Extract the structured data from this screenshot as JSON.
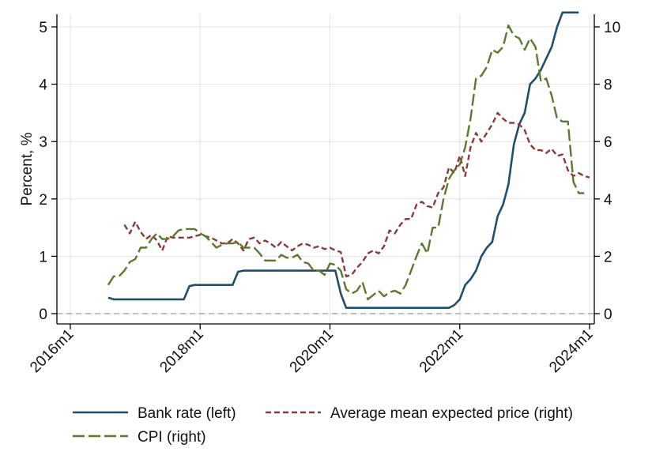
{
  "chart_data": {
    "type": "line",
    "title": "",
    "ylabel": "Percent, %",
    "y_left": {
      "ylim": [
        0,
        5
      ],
      "ticks": [
        "0",
        "1",
        "2",
        "3",
        "4",
        "5"
      ]
    },
    "y_right": {
      "ylim": [
        0,
        10
      ],
      "ticks": [
        "0",
        "2",
        "4",
        "6",
        "8",
        "10"
      ]
    },
    "x_axis": {
      "range": [
        2016,
        2024
      ],
      "ticks": [
        {
          "label": "2016m1",
          "value": 2016
        },
        {
          "label": "2018m1",
          "value": 2018
        },
        {
          "label": "2020m1",
          "value": 2020
        },
        {
          "label": "2022m1",
          "value": 2022
        },
        {
          "label": "2024m1",
          "value": 2024
        }
      ]
    },
    "grid": true,
    "zero_reference_line": 0,
    "legend_position": "bottom",
    "colors": {
      "bank_rate": "#1f4e6e",
      "expected_price": "#8b3a3a",
      "cpi": "#5a7a2e",
      "grid": "#e3e3e3",
      "reference": "#999999"
    },
    "series": [
      {
        "name": "Bank rate (left)",
        "axis": "left",
        "style": "solid",
        "points": [
          [
            "2016m8",
            0.28
          ],
          [
            "2016m9",
            0.25
          ],
          [
            "2016m12",
            0.25
          ],
          [
            "2017m3",
            0.25
          ],
          [
            "2017m6",
            0.25
          ],
          [
            "2017m10",
            0.25
          ],
          [
            "2017m11",
            0.48
          ],
          [
            "2017m12",
            0.5
          ],
          [
            "2018m3",
            0.5
          ],
          [
            "2018m7",
            0.5
          ],
          [
            "2018m8",
            0.73
          ],
          [
            "2018m9",
            0.75
          ],
          [
            "2019m6",
            0.75
          ],
          [
            "2020m1",
            0.75
          ],
          [
            "2020m2",
            0.75
          ],
          [
            "2020m3",
            0.35
          ],
          [
            "2020m4",
            0.1
          ],
          [
            "2020m8",
            0.1
          ],
          [
            "2021m6",
            0.1
          ],
          [
            "2021m11",
            0.1
          ],
          [
            "2021m12",
            0.15
          ],
          [
            "2022m1",
            0.25
          ],
          [
            "2022m2",
            0.5
          ],
          [
            "2022m3",
            0.6
          ],
          [
            "2022m4",
            0.75
          ],
          [
            "2022m5",
            1.0
          ],
          [
            "2022m6",
            1.15
          ],
          [
            "2022m7",
            1.25
          ],
          [
            "2022m8",
            1.7
          ],
          [
            "2022m9",
            1.9
          ],
          [
            "2022m10",
            2.25
          ],
          [
            "2022m11",
            2.95
          ],
          [
            "2022m12",
            3.3
          ],
          [
            "2023m1",
            3.5
          ],
          [
            "2023m2",
            4.0
          ],
          [
            "2023m3",
            4.1
          ],
          [
            "2023m4",
            4.25
          ],
          [
            "2023m5",
            4.45
          ],
          [
            "2023m6",
            4.65
          ],
          [
            "2023m7",
            5.0
          ],
          [
            "2023m8",
            5.25
          ],
          [
            "2023m9",
            5.25
          ],
          [
            "2023m10",
            5.25
          ],
          [
            "2023m11",
            5.25
          ]
        ]
      },
      {
        "name": "Average mean expected price (right)",
        "axis": "right",
        "style": "short-dash",
        "points": [
          [
            "2016m11",
            3.1
          ],
          [
            "2016m12",
            2.8
          ],
          [
            "2017m1",
            3.2
          ],
          [
            "2017m2",
            2.85
          ],
          [
            "2017m3",
            2.6
          ],
          [
            "2017m4",
            2.75
          ],
          [
            "2017m5",
            2.55
          ],
          [
            "2017m6",
            2.2
          ],
          [
            "2017m7",
            2.7
          ],
          [
            "2017m8",
            2.65
          ],
          [
            "2017m9",
            2.65
          ],
          [
            "2017m10",
            2.65
          ],
          [
            "2017m11",
            2.65
          ],
          [
            "2017m12",
            2.7
          ],
          [
            "2018m1",
            2.75
          ],
          [
            "2018m2",
            2.7
          ],
          [
            "2018m3",
            2.65
          ],
          [
            "2018m4",
            2.55
          ],
          [
            "2018m5",
            2.45
          ],
          [
            "2018m6",
            2.45
          ],
          [
            "2018m7",
            2.6
          ],
          [
            "2018m8",
            2.45
          ],
          [
            "2018m9",
            2.2
          ],
          [
            "2018m10",
            2.6
          ],
          [
            "2018m11",
            2.65
          ],
          [
            "2018m12",
            2.45
          ],
          [
            "2019m1",
            2.55
          ],
          [
            "2019m2",
            2.45
          ],
          [
            "2019m3",
            2.3
          ],
          [
            "2019m4",
            2.5
          ],
          [
            "2019m5",
            2.35
          ],
          [
            "2019m6",
            2.2
          ],
          [
            "2019m7",
            2.35
          ],
          [
            "2019m8",
            2.45
          ],
          [
            "2019m9",
            2.4
          ],
          [
            "2019m10",
            2.3
          ],
          [
            "2019m11",
            2.35
          ],
          [
            "2019m12",
            2.25
          ],
          [
            "2020m1",
            2.3
          ],
          [
            "2020m2",
            2.2
          ],
          [
            "2020m3",
            2.15
          ],
          [
            "2020m4",
            1.3
          ],
          [
            "2020m5",
            1.35
          ],
          [
            "2020m6",
            1.6
          ],
          [
            "2020m7",
            1.8
          ],
          [
            "2020m8",
            2.1
          ],
          [
            "2020m9",
            2.2
          ],
          [
            "2020m10",
            2.1
          ],
          [
            "2020m11",
            2.35
          ],
          [
            "2020m12",
            2.9
          ],
          [
            "2021m1",
            2.8
          ],
          [
            "2021m2",
            3.1
          ],
          [
            "2021m3",
            3.3
          ],
          [
            "2021m4",
            3.3
          ],
          [
            "2021m5",
            3.8
          ],
          [
            "2021m6",
            3.9
          ],
          [
            "2021m7",
            3.75
          ],
          [
            "2021m8",
            3.7
          ],
          [
            "2021m9",
            4.2
          ],
          [
            "2021m10",
            4.4
          ],
          [
            "2021m11",
            5.1
          ],
          [
            "2021m12",
            4.9
          ],
          [
            "2022m1",
            5.5
          ],
          [
            "2022m2",
            4.8
          ],
          [
            "2022m3",
            5.8
          ],
          [
            "2022m4",
            6.3
          ],
          [
            "2022m5",
            6.0
          ],
          [
            "2022m6",
            6.3
          ],
          [
            "2022m7",
            6.6
          ],
          [
            "2022m8",
            7.0
          ],
          [
            "2022m9",
            6.8
          ],
          [
            "2022m10",
            6.65
          ],
          [
            "2022m11",
            6.65
          ],
          [
            "2022m12",
            6.6
          ],
          [
            "2023m1",
            6.4
          ],
          [
            "2023m2",
            5.9
          ],
          [
            "2023m3",
            5.7
          ],
          [
            "2023m4",
            5.7
          ],
          [
            "2023m5",
            5.6
          ],
          [
            "2023m6",
            5.75
          ],
          [
            "2023m7",
            5.5
          ],
          [
            "2023m8",
            5.55
          ],
          [
            "2023m9",
            5.0
          ],
          [
            "2023m10",
            4.8
          ],
          [
            "2023m11",
            4.9
          ],
          [
            "2023m12",
            4.8
          ],
          [
            "2024m1",
            4.75
          ]
        ]
      },
      {
        "name": "CPI (right)",
        "axis": "right",
        "style": "long-dash",
        "points": [
          [
            "2016m8",
            1.0
          ],
          [
            "2016m9",
            1.3
          ],
          [
            "2016m10",
            1.3
          ],
          [
            "2016m11",
            1.5
          ],
          [
            "2016m12",
            1.8
          ],
          [
            "2017m1",
            1.9
          ],
          [
            "2017m2",
            2.3
          ],
          [
            "2017m3",
            2.3
          ],
          [
            "2017m4",
            2.6
          ],
          [
            "2017m5",
            2.8
          ],
          [
            "2017m6",
            2.6
          ],
          [
            "2017m7",
            2.6
          ],
          [
            "2017m8",
            2.7
          ],
          [
            "2017m9",
            2.9
          ],
          [
            "2017m10",
            2.95
          ],
          [
            "2017m11",
            2.95
          ],
          [
            "2017m12",
            2.95
          ],
          [
            "2018m1",
            2.8
          ],
          [
            "2018m2",
            2.7
          ],
          [
            "2018m3",
            2.5
          ],
          [
            "2018m4",
            2.3
          ],
          [
            "2018m5",
            2.4
          ],
          [
            "2018m6",
            2.45
          ],
          [
            "2018m7",
            2.45
          ],
          [
            "2018m8",
            2.5
          ],
          [
            "2018m9",
            2.3
          ],
          [
            "2018m10",
            2.3
          ],
          [
            "2018m11",
            2.3
          ],
          [
            "2018m12",
            2.1
          ],
          [
            "2019m1",
            1.85
          ],
          [
            "2019m2",
            1.85
          ],
          [
            "2019m3",
            1.85
          ],
          [
            "2019m4",
            2.05
          ],
          [
            "2019m5",
            1.95
          ],
          [
            "2019m6",
            1.95
          ],
          [
            "2019m7",
            2.05
          ],
          [
            "2019m8",
            1.8
          ],
          [
            "2019m9",
            1.75
          ],
          [
            "2019m10",
            1.5
          ],
          [
            "2019m11",
            1.5
          ],
          [
            "2019m12",
            1.35
          ],
          [
            "2020m1",
            1.75
          ],
          [
            "2020m2",
            1.7
          ],
          [
            "2020m3",
            1.5
          ],
          [
            "2020m4",
            0.85
          ],
          [
            "2020m5",
            0.7
          ],
          [
            "2020m6",
            0.8
          ],
          [
            "2020m7",
            1.1
          ],
          [
            "2020m8",
            0.5
          ],
          [
            "2020m9",
            0.65
          ],
          [
            "2020m10",
            0.8
          ],
          [
            "2020m11",
            0.6
          ],
          [
            "2020m12",
            0.75
          ],
          [
            "2021m1",
            0.8
          ],
          [
            "2021m2",
            0.7
          ],
          [
            "2021m3",
            1.0
          ],
          [
            "2021m4",
            1.5
          ],
          [
            "2021m5",
            2.0
          ],
          [
            "2021m6",
            2.45
          ],
          [
            "2021m7",
            2.1
          ],
          [
            "2021m8",
            3.0
          ],
          [
            "2021m9",
            3.0
          ],
          [
            "2021m10",
            4.0
          ],
          [
            "2021m11",
            4.7
          ],
          [
            "2021m12",
            5.0
          ],
          [
            "2022m1",
            5.2
          ],
          [
            "2022m2",
            5.8
          ],
          [
            "2022m3",
            6.8
          ],
          [
            "2022m4",
            8.2
          ],
          [
            "2022m5",
            8.3
          ],
          [
            "2022m6",
            8.6
          ],
          [
            "2022m7",
            9.2
          ],
          [
            "2022m8",
            9.1
          ],
          [
            "2022m9",
            9.3
          ],
          [
            "2022m10",
            10.05
          ],
          [
            "2022m11",
            9.7
          ],
          [
            "2022m12",
            9.6
          ],
          [
            "2023m1",
            9.2
          ],
          [
            "2023m2",
            9.6
          ],
          [
            "2023m3",
            9.3
          ],
          [
            "2023m4",
            8.1
          ],
          [
            "2023m5",
            8.2
          ],
          [
            "2023m6",
            7.6
          ],
          [
            "2023m7",
            6.8
          ],
          [
            "2023m8",
            6.7
          ],
          [
            "2023m9",
            6.7
          ],
          [
            "2023m10",
            4.6
          ],
          [
            "2023m11",
            4.2
          ],
          [
            "2023m12",
            4.2
          ]
        ]
      }
    ]
  }
}
